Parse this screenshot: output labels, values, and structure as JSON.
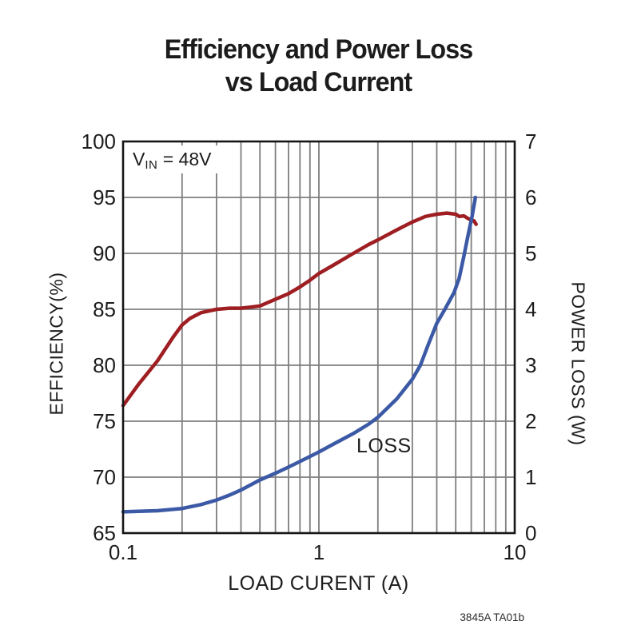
{
  "title": {
    "line1": "Efficiency and Power Loss",
    "line2": "vs Load Current"
  },
  "annotation": {
    "v": "V",
    "sub": "IN",
    "rest": " = 48V"
  },
  "loss_label": "LOSS",
  "footer": "3845A TA01b",
  "chart_data": {
    "type": "line",
    "title": "Efficiency and Power Loss vs Load Current",
    "xlabel": "LOAD CURENT (A)",
    "ylabel_left": "EFFICIENCY(%)",
    "ylabel_right": "POWER LOSS (W)",
    "x_scale": "log",
    "xlim": [
      0.1,
      10
    ],
    "ylim_left": [
      65,
      100
    ],
    "ylim_right": [
      0,
      7
    ],
    "grid": true,
    "grid_color": "#7e7e7e",
    "frame_color": "#161616",
    "x_tick_labels": [
      {
        "value": 0.1,
        "label": "0.1"
      },
      {
        "value": 1,
        "label": "1"
      },
      {
        "value": 10,
        "label": "10"
      }
    ],
    "y_left_ticks": [
      65,
      70,
      75,
      80,
      85,
      90,
      95,
      100
    ],
    "y_right_ticks": [
      0,
      1,
      2,
      3,
      4,
      5,
      6,
      7
    ],
    "x_gridlines": [
      0.2,
      0.3,
      0.4,
      0.5,
      0.6,
      0.7,
      0.8,
      0.9,
      1,
      2,
      3,
      4,
      5,
      6,
      7,
      8,
      9
    ],
    "series": [
      {
        "name": "EFFICIENCY",
        "axis": "left",
        "unit": "%",
        "color": "#9e1e22",
        "points": [
          [
            0.1,
            76.4
          ],
          [
            0.12,
            78.3
          ],
          [
            0.15,
            80.4
          ],
          [
            0.18,
            82.5
          ],
          [
            0.2,
            83.6
          ],
          [
            0.22,
            84.2
          ],
          [
            0.25,
            84.7
          ],
          [
            0.3,
            85.0
          ],
          [
            0.35,
            85.1
          ],
          [
            0.4,
            85.1
          ],
          [
            0.45,
            85.2
          ],
          [
            0.5,
            85.3
          ],
          [
            0.6,
            85.9
          ],
          [
            0.7,
            86.4
          ],
          [
            0.8,
            87.0
          ],
          [
            0.9,
            87.6
          ],
          [
            1.0,
            88.2
          ],
          [
            1.2,
            89.0
          ],
          [
            1.5,
            90.0
          ],
          [
            1.8,
            90.8
          ],
          [
            2.0,
            91.2
          ],
          [
            2.5,
            92.1
          ],
          [
            3.0,
            92.8
          ],
          [
            3.5,
            93.3
          ],
          [
            4.0,
            93.5
          ],
          [
            4.5,
            93.6
          ],
          [
            5.0,
            93.5
          ],
          [
            5.2,
            93.3
          ],
          [
            5.5,
            93.35
          ],
          [
            5.8,
            93.1
          ],
          [
            6.0,
            93.0
          ],
          [
            6.2,
            92.9
          ],
          [
            6.35,
            92.6
          ]
        ]
      },
      {
        "name": "LOSS",
        "axis": "right",
        "unit": "W",
        "color": "#3b59a5",
        "points": [
          [
            0.1,
            0.38
          ],
          [
            0.12,
            0.39
          ],
          [
            0.15,
            0.4
          ],
          [
            0.2,
            0.44
          ],
          [
            0.25,
            0.51
          ],
          [
            0.3,
            0.59
          ],
          [
            0.35,
            0.68
          ],
          [
            0.4,
            0.77
          ],
          [
            0.5,
            0.95
          ],
          [
            0.6,
            1.07
          ],
          [
            0.7,
            1.18
          ],
          [
            0.8,
            1.28
          ],
          [
            0.9,
            1.37
          ],
          [
            1.0,
            1.45
          ],
          [
            1.2,
            1.6
          ],
          [
            1.5,
            1.78
          ],
          [
            1.8,
            1.95
          ],
          [
            2.0,
            2.07
          ],
          [
            2.5,
            2.4
          ],
          [
            3.0,
            2.75
          ],
          [
            3.3,
            3.0
          ],
          [
            3.6,
            3.35
          ],
          [
            4.0,
            3.75
          ],
          [
            4.4,
            4.0
          ],
          [
            4.9,
            4.3
          ],
          [
            5.2,
            4.55
          ],
          [
            5.5,
            4.95
          ],
          [
            5.8,
            5.35
          ],
          [
            6.05,
            5.65
          ],
          [
            6.3,
            6.0
          ]
        ]
      }
    ]
  }
}
